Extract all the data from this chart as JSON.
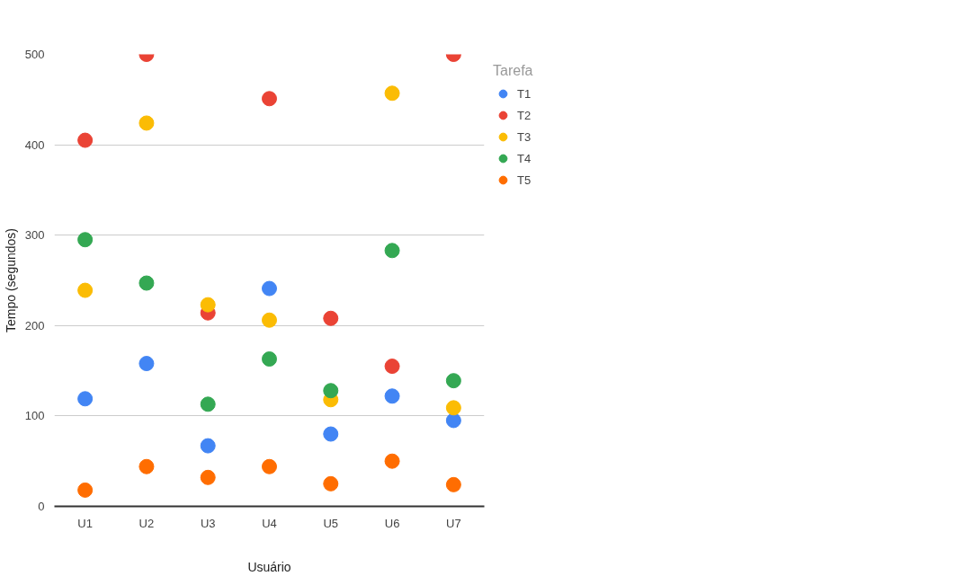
{
  "chart_data": {
    "type": "scatter",
    "xlabel": "Usuário",
    "ylabel": "Tempo (segundos)",
    "legend_title": "Tarefa",
    "categories": [
      "U1",
      "U2",
      "U3",
      "U4",
      "U5",
      "U6",
      "U7"
    ],
    "series": [
      {
        "name": "T1",
        "color": "#4285f4",
        "values": [
          119,
          158,
          67,
          241,
          80,
          122,
          95
        ]
      },
      {
        "name": "T2",
        "color": "#ea4335",
        "values": [
          405,
          500,
          214,
          451,
          208,
          155,
          500
        ]
      },
      {
        "name": "T3",
        "color": "#fbbc04",
        "values": [
          239,
          424,
          223,
          206,
          118,
          457,
          109
        ]
      },
      {
        "name": "T4",
        "color": "#34a853",
        "values": [
          295,
          247,
          113,
          163,
          128,
          283,
          139
        ]
      },
      {
        "name": "T5",
        "color": "#ff6d01",
        "values": [
          18,
          44,
          32,
          44,
          25,
          50,
          24
        ]
      }
    ],
    "ylim": [
      0,
      500
    ],
    "yticks": [
      0,
      100,
      200,
      300,
      400,
      500
    ],
    "grid": "y",
    "legend": "top right",
    "marker": "circle"
  }
}
